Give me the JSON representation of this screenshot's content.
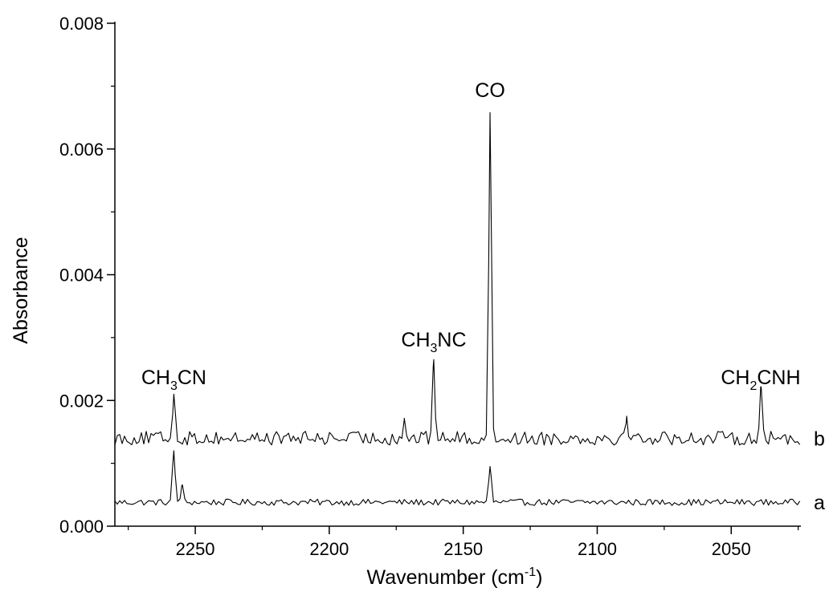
{
  "chart_data": {
    "type": "line",
    "title": "",
    "xlabel": "Wavenumber (cm",
    "xlabel_sup": "-1",
    "xlabel_tail": ")",
    "ylabel": "Absorbance",
    "xlim": [
      2280,
      2024
    ],
    "x_reversed": true,
    "ylim": [
      0.0,
      0.008
    ],
    "xticks": [
      2250,
      2200,
      2150,
      2100,
      2050
    ],
    "xtick_labels": [
      "2250",
      "2200",
      "2150",
      "2100",
      "2050"
    ],
    "yticks": [
      0.0,
      0.002,
      0.004,
      0.006,
      0.008
    ],
    "ytick_labels": [
      "0.000",
      "0.002",
      "0.004",
      "0.006",
      "0.008"
    ],
    "grid": false,
    "legend": "none",
    "series": [
      {
        "name": "a",
        "baseline": 0.00038,
        "noise_amplitude": 5e-05,
        "peaks": [
          {
            "x": 2258,
            "y": 0.0012
          },
          {
            "x": 2255,
            "y": 0.00065
          },
          {
            "x": 2140,
            "y": 0.00095
          }
        ]
      },
      {
        "name": "b",
        "baseline": 0.0014,
        "noise_amplitude": 0.00011,
        "peaks": [
          {
            "x": 2258,
            "y": 0.0021
          },
          {
            "x": 2172,
            "y": 0.0017
          },
          {
            "x": 2161,
            "y": 0.00265
          },
          {
            "x": 2140,
            "y": 0.00658
          },
          {
            "x": 2089,
            "y": 0.00175
          },
          {
            "x": 2039,
            "y": 0.00222
          }
        ]
      }
    ],
    "annotations": [
      {
        "main": "CH",
        "sub": "3",
        "rest": "CN",
        "x": 2258,
        "y": 0.00218
      },
      {
        "main": "CH",
        "sub": "3",
        "rest": "NC",
        "x": 2161,
        "y": 0.00278
      },
      {
        "main": "CO",
        "sub": "",
        "rest": "",
        "x": 2140,
        "y": 0.00675
      },
      {
        "main": "CH",
        "sub": "2",
        "rest": "CNH",
        "x": 2039,
        "y": 0.00218
      }
    ]
  }
}
